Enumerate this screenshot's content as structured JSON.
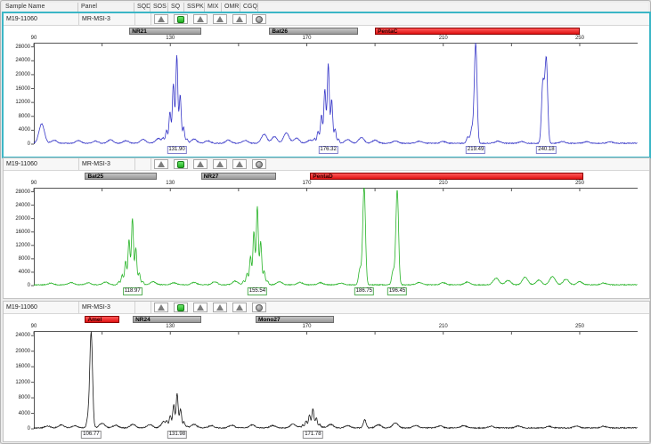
{
  "header": {
    "columns": [
      "Sample Name",
      "Panel",
      "SQD",
      "SOS",
      "SQ",
      "SSPK",
      "MIX",
      "OMR",
      "CGQ"
    ]
  },
  "flags": [
    {
      "column": "SQD",
      "icon": "blank"
    },
    {
      "column": "SOS",
      "icon": "gray-triangle"
    },
    {
      "column": "SQ",
      "icon": "green-square"
    },
    {
      "column": "SSPK",
      "icon": "gray-triangle"
    },
    {
      "column": "MIX",
      "icon": "gray-triangle"
    },
    {
      "column": "OMR",
      "icon": "gray-triangle"
    },
    {
      "column": "CGQ",
      "icon": "gray-circle"
    }
  ],
  "colors": {
    "selection_border": "#3bb6c6",
    "gray_marker_bar": "#a6a6a6",
    "red_marker_bar": "#e81515",
    "pass_green_icon": "#35d435",
    "blue_trace": "#3838c8",
    "green_trace": "#28b428",
    "black_trace": "#1a1a1a"
  },
  "axis": {
    "x_ticks_labeled": [
      90,
      130,
      170,
      210,
      250
    ],
    "x_minor_step": 20,
    "x_min": 90,
    "x_max": 267
  },
  "panels": [
    {
      "sample_name": "M19-11060",
      "panel_name": "MR-MSI-3",
      "selected": true,
      "trace_color": "#3838c8",
      "label_border": "#8080cc",
      "y_ticks": [
        0,
        4000,
        8000,
        12000,
        16000,
        20000,
        24000,
        28000
      ],
      "y_top": 29200,
      "markers": [
        {
          "label": "NR21",
          "type": "gray",
          "start_bp": 118,
          "end_bp": 139
        },
        {
          "label": "Bat26",
          "type": "gray",
          "start_bp": 159,
          "end_bp": 185
        },
        {
          "label": "PentaC",
          "type": "red",
          "start_bp": 190,
          "end_bp": 250
        }
      ],
      "peak_labels": [
        {
          "text": "131.90",
          "bp": 131.9
        },
        {
          "text": "176.32",
          "bp": 176.3
        },
        {
          "text": "219.49",
          "bp": 219.5
        },
        {
          "text": "240.18",
          "bp": 240.2
        }
      ],
      "peaks": [
        [
          92.3,
          5600,
          "b"
        ],
        [
          96,
          900,
          "b"
        ],
        [
          103,
          800,
          "b"
        ],
        [
          108,
          650,
          "b"
        ],
        [
          112.5,
          1000,
          "b"
        ],
        [
          117,
          750,
          "b"
        ],
        [
          122,
          1100,
          "b"
        ],
        [
          126.5,
          1400,
          "b"
        ],
        [
          131.9,
          25200,
          "st"
        ],
        [
          137,
          1200,
          "b"
        ],
        [
          141,
          700,
          "b"
        ],
        [
          147,
          900,
          "b"
        ],
        [
          152,
          800,
          "b"
        ],
        [
          157.5,
          2600,
          "b"
        ],
        [
          160.5,
          1900,
          "b"
        ],
        [
          164,
          3000,
          "b"
        ],
        [
          167,
          1500,
          "b"
        ],
        [
          171,
          900,
          "b"
        ],
        [
          176.3,
          22800,
          "st"
        ],
        [
          182,
          1100,
          "b"
        ],
        [
          186,
          1600,
          "b"
        ],
        [
          190,
          900,
          "b"
        ],
        [
          196,
          700,
          "b"
        ],
        [
          203,
          600,
          "b"
        ],
        [
          210,
          500,
          "b"
        ],
        [
          217.2,
          1800,
          "s"
        ],
        [
          218.4,
          4200,
          "s"
        ],
        [
          219.5,
          28800,
          "s"
        ],
        [
          226,
          600,
          "b"
        ],
        [
          233,
          500,
          "b"
        ],
        [
          239.2,
          17500,
          "s"
        ],
        [
          240.2,
          24200,
          "s"
        ],
        [
          245,
          500,
          "b"
        ],
        [
          252,
          450,
          "b"
        ],
        [
          259,
          400,
          "b"
        ]
      ]
    },
    {
      "sample_name": "M19-11060",
      "panel_name": "MR-MSI-3",
      "selected": false,
      "trace_color": "#28b428",
      "label_border": "#58b058",
      "y_ticks": [
        0,
        4000,
        8000,
        12000,
        16000,
        20000,
        24000,
        28000
      ],
      "y_top": 29200,
      "markers": [
        {
          "label": "Bat25",
          "type": "gray",
          "start_bp": 105,
          "end_bp": 126
        },
        {
          "label": "NR27",
          "type": "gray",
          "start_bp": 139,
          "end_bp": 161
        },
        {
          "label": "PentaD",
          "type": "red",
          "start_bp": 171,
          "end_bp": 251
        }
      ],
      "peak_labels": [
        {
          "text": "118.97",
          "bp": 118.9
        },
        {
          "text": "155.54",
          "bp": 155.5
        },
        {
          "text": "186.75",
          "bp": 186.8
        },
        {
          "text": "196.45",
          "bp": 196.5
        }
      ],
      "peaks": [
        [
          95,
          500,
          "b"
        ],
        [
          101,
          700,
          "b"
        ],
        [
          106,
          600,
          "b"
        ],
        [
          111,
          800,
          "b"
        ],
        [
          118.9,
          19800,
          "st"
        ],
        [
          125,
          900,
          "b"
        ],
        [
          131,
          600,
          "b"
        ],
        [
          137,
          700,
          "b"
        ],
        [
          143,
          900,
          "b"
        ],
        [
          149,
          1100,
          "b"
        ],
        [
          155.5,
          23300,
          "st"
        ],
        [
          162,
          900,
          "b"
        ],
        [
          168,
          700,
          "b"
        ],
        [
          174,
          600,
          "b"
        ],
        [
          180,
          500,
          "b"
        ],
        [
          185.6,
          4800,
          "s"
        ],
        [
          186.8,
          29200,
          "s"
        ],
        [
          195.3,
          4200,
          "s"
        ],
        [
          196.5,
          28300,
          "s"
        ],
        [
          203,
          700,
          "b"
        ],
        [
          210,
          600,
          "b"
        ],
        [
          217,
          800,
          "b"
        ],
        [
          225.5,
          2000,
          "b"
        ],
        [
          229,
          1300,
          "b"
        ],
        [
          234,
          2300,
          "b"
        ],
        [
          238,
          1400,
          "b"
        ],
        [
          242,
          2500,
          "b"
        ],
        [
          246,
          1700,
          "b"
        ],
        [
          250,
          900,
          "b"
        ],
        [
          257,
          500,
          "b"
        ]
      ]
    },
    {
      "sample_name": "M19-11060",
      "panel_name": "MR-MSI-3",
      "selected": false,
      "trace_color": "#1a1a1a",
      "label_border": "#909090",
      "y_ticks": [
        0,
        4000,
        8000,
        12000,
        16000,
        20000,
        24000
      ],
      "y_top": 25200,
      "markers": [
        {
          "label": "Amel",
          "type": "red",
          "start_bp": 105,
          "end_bp": 115
        },
        {
          "label": "NR24",
          "type": "gray",
          "start_bp": 119,
          "end_bp": 139
        },
        {
          "label": "Mono27",
          "type": "gray",
          "start_bp": 155,
          "end_bp": 178
        }
      ],
      "peak_labels": [
        {
          "text": "106.77",
          "bp": 106.8
        },
        {
          "text": "131.98",
          "bp": 132.0
        },
        {
          "text": "171.78",
          "bp": 171.8
        }
      ],
      "peaks": [
        [
          94,
          500,
          "b"
        ],
        [
          98,
          800,
          "b"
        ],
        [
          102,
          600,
          "b"
        ],
        [
          105.9,
          2600,
          "s"
        ],
        [
          106.8,
          24600,
          "s"
        ],
        [
          110,
          1200,
          "b"
        ],
        [
          114,
          700,
          "b"
        ],
        [
          119,
          900,
          "b"
        ],
        [
          124,
          800,
          "b"
        ],
        [
          128,
          1200,
          "b"
        ],
        [
          132,
          8800,
          "st"
        ],
        [
          137,
          900,
          "b"
        ],
        [
          142,
          600,
          "b"
        ],
        [
          148,
          700,
          "b"
        ],
        [
          154,
          800,
          "b"
        ],
        [
          160,
          600,
          "b"
        ],
        [
          166,
          1000,
          "b"
        ],
        [
          171.8,
          4900,
          "st"
        ],
        [
          177,
          900,
          "b"
        ],
        [
          182,
          600,
          "b"
        ],
        [
          187,
          2100,
          "s"
        ],
        [
          191,
          800,
          "b"
        ],
        [
          196,
          1300,
          "b"
        ],
        [
          202,
          600,
          "b"
        ],
        [
          209,
          500,
          "b"
        ],
        [
          216,
          600,
          "b"
        ],
        [
          224,
          400,
          "b"
        ],
        [
          232,
          500,
          "b"
        ],
        [
          241,
          400,
          "b"
        ],
        [
          249,
          450,
          "b"
        ],
        [
          257,
          400,
          "b"
        ]
      ]
    }
  ]
}
